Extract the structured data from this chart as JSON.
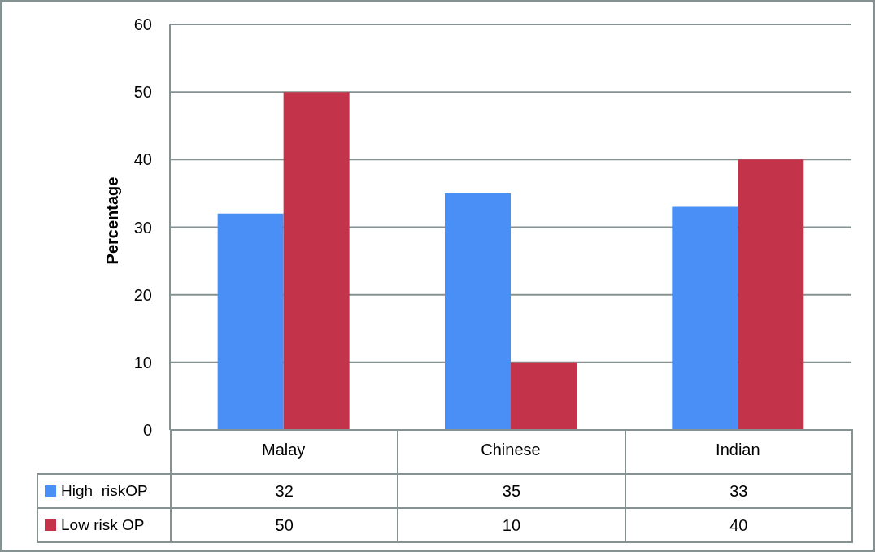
{
  "chart_data": {
    "type": "bar",
    "ylabel": "Percentage",
    "categories": [
      "Malay",
      "Chinese",
      "Indian"
    ],
    "series": [
      {
        "name": "High  riskOP",
        "color": "#4a8ff5",
        "values": [
          32,
          35,
          33
        ]
      },
      {
        "name": "Low risk OP",
        "color": "#c3344a",
        "values": [
          50,
          10,
          40
        ]
      }
    ],
    "ylim": [
      0,
      60
    ],
    "yticks": [
      0,
      10,
      20,
      30,
      40,
      50,
      60
    ],
    "grid": "y",
    "legend": "bottom left",
    "data_labels": true
  }
}
